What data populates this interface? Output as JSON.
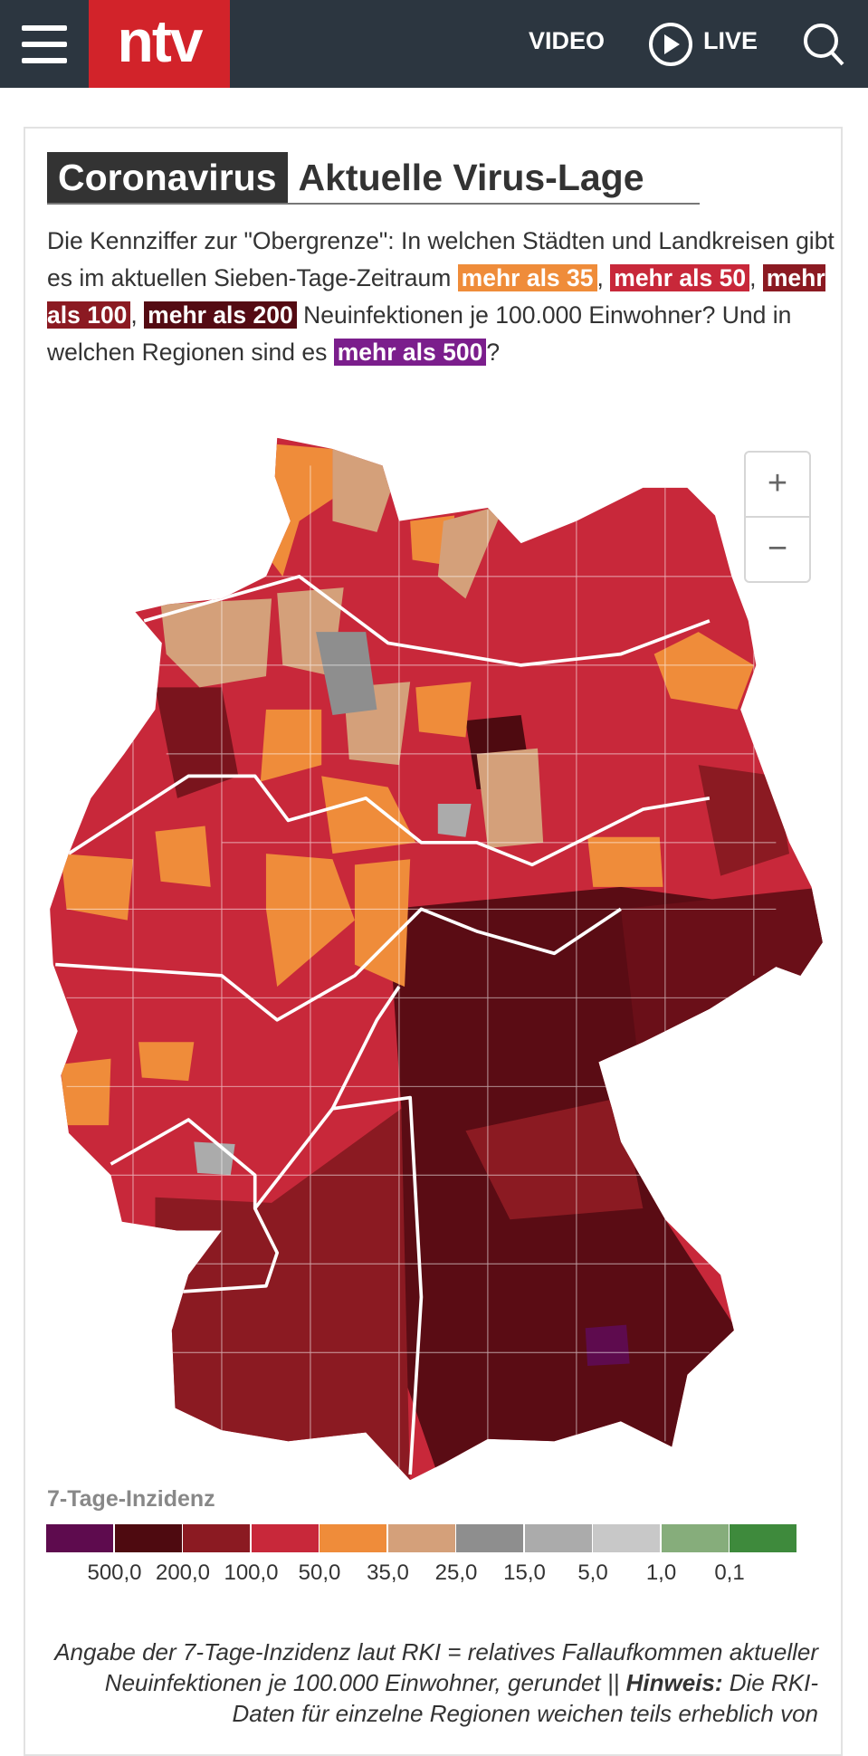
{
  "header": {
    "logo": "ntv",
    "nav": [
      "VIDEO",
      "LIVE"
    ]
  },
  "article": {
    "kicker": "Coronavirus",
    "title": "Aktuelle Virus-Lage",
    "intro": [
      {
        "text": "Die Kennziffer zur \"Obergrenze\": In welchen Städten und Landkreisen gibt es im aktuellen Sieben-Tage-Zeitraum "
      },
      {
        "text": "mehr als 35",
        "color": "#ef8c3a"
      },
      {
        "text": ", "
      },
      {
        "text": "mehr als 50",
        "color": "#c8283a"
      },
      {
        "text": ", "
      },
      {
        "text": "mehr als 100",
        "color": "#8b1a22"
      },
      {
        "text": ", "
      },
      {
        "text": "mehr als 200",
        "color": "#540b13"
      },
      {
        "text": " Neuinfektionen je 100.000 Einwohner? Und in welchen Regionen sind es "
      },
      {
        "text": "mehr als 500",
        "color": "#7b1e8c"
      },
      {
        "text": "?"
      }
    ]
  },
  "map": {
    "zoom": [
      "+",
      "−"
    ]
  },
  "legend": {
    "title": "7-Tage-Inzidenz",
    "colors": [
      "#5e0b4e",
      "#4e0a10",
      "#8b1a22",
      "#c8283a",
      "#ef8c3a",
      "#d4a07a",
      "#8e8e8e",
      "#ababab",
      "#c8c8c8",
      "#86ad7b",
      "#3e8a3c"
    ],
    "labels": [
      "500,0",
      "200,0",
      "100,0",
      "50,0",
      "35,0",
      "25,0",
      "15,0",
      "5,0",
      "1,0",
      "0,1"
    ]
  },
  "note": {
    "text": "Angabe der 7-Tage-Inzidenz laut RKI = relatives Fallaufkommen aktueller Neuinfektionen je 100.000 Einwohner, gerundet || ",
    "bold": "Hinweis:",
    "rest": " Die RKI-Daten für einzelne Regionen weichen teils erheblich von"
  }
}
